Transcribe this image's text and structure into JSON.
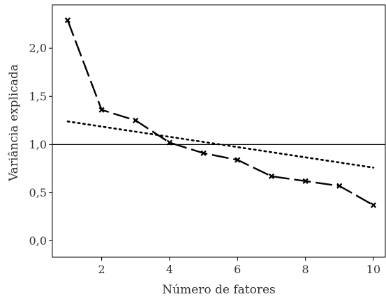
{
  "chart_data": {
    "type": "line",
    "title": "",
    "xlabel": "Número de fatores",
    "ylabel": "Variância explicada",
    "xlim": [
      0.55,
      10.35
    ],
    "ylim": [
      -0.17,
      2.45
    ],
    "x_ticks": [
      2,
      4,
      6,
      8,
      10
    ],
    "x_tick_labels": [
      "2",
      "4",
      "6",
      "8",
      "10"
    ],
    "y_ticks": [
      0.0,
      0.5,
      1.0,
      1.5,
      2.0
    ],
    "y_tick_labels": [
      "0,0",
      "0,5",
      "1,0",
      "1,5",
      "2,0"
    ],
    "grid": false,
    "legend": "none",
    "reference_lines": [
      {
        "orientation": "horizontal",
        "y": 1.0,
        "style": "solid",
        "color": "#000000"
      }
    ],
    "series": [
      {
        "style": "dashed",
        "marker": "x",
        "color": "#000000",
        "x": [
          1,
          2,
          3,
          4,
          5,
          6,
          7,
          8,
          9,
          10
        ],
        "y": [
          2.29,
          1.36,
          1.25,
          1.02,
          0.91,
          0.84,
          0.67,
          0.62,
          0.57,
          0.37
        ]
      },
      {
        "style": "dotted",
        "marker": "none",
        "color": "#000000",
        "x": [
          1,
          10
        ],
        "y": [
          1.24,
          0.76
        ]
      }
    ]
  }
}
